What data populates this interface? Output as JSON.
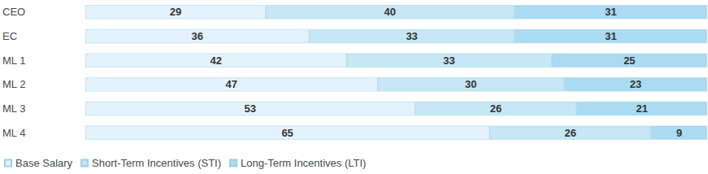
{
  "chart_data": {
    "type": "bar",
    "orientation": "horizontal",
    "stacked": true,
    "data_labels": true,
    "grid": false,
    "tick_labels": "y",
    "legend": "bottom-left",
    "categories": [
      "CEO",
      "EC",
      "ML 1",
      "ML 2",
      "ML 3",
      "ML 4"
    ],
    "xlim": [
      0,
      100
    ],
    "series": [
      {
        "name": "Base Salary",
        "color": "#e4f3fb",
        "values": [
          29,
          36,
          42,
          47,
          53,
          65
        ]
      },
      {
        "name": "Short-Term Incentives (STI)",
        "color": "#c6e7f5",
        "values": [
          40,
          33,
          33,
          30,
          26,
          26
        ]
      },
      {
        "name": "Long-Term Incentives (LTI)",
        "color": "#a9dcf2",
        "values": [
          31,
          31,
          25,
          23,
          21,
          9
        ]
      }
    ]
  }
}
